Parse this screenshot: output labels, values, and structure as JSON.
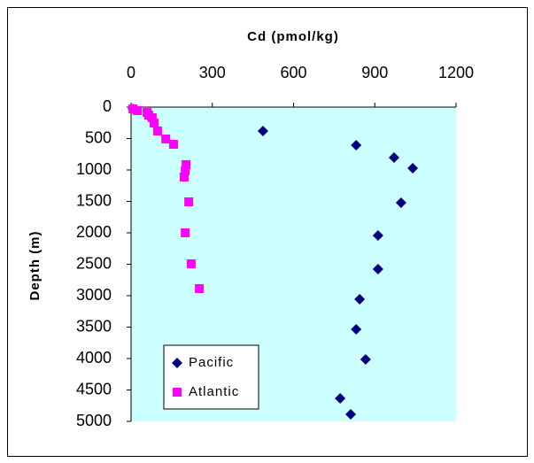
{
  "chart_data": {
    "type": "scatter",
    "x_label": "Cd (pmol/kg)",
    "y_label": "Depth (m)",
    "xlim": [
      0,
      1200
    ],
    "xticks": [
      0,
      300,
      600,
      900,
      1200
    ],
    "ylim": [
      0,
      5000
    ],
    "yticks": [
      0,
      500,
      1000,
      1500,
      2000,
      2500,
      3000,
      3500,
      4000,
      4500,
      5000
    ],
    "y_inverted": true,
    "x_axis_position": "top",
    "legend_position": "lower left",
    "background": "#ccffff",
    "series": [
      {
        "name": "Pacific",
        "color": "#000080",
        "marker": "diamond",
        "x": [
          7,
          75,
          487,
          831,
          971,
          1040,
          997,
          912,
          912,
          844,
          831,
          866,
          772,
          811
        ],
        "values": [
          28,
          183,
          380,
          606,
          803,
          972,
          1521,
          2042,
          2577,
          3056,
          3535,
          4014,
          4634,
          4887
        ]
      },
      {
        "name": "Atlantic",
        "color": "#ff00ff",
        "marker": "square",
        "x": [
          7,
          23,
          59,
          65,
          78,
          85,
          98,
          128,
          157,
          203,
          200,
          196,
          213,
          200,
          222,
          252
        ],
        "values": [
          28,
          56,
          85,
          127,
          169,
          254,
          380,
          507,
          592,
          915,
          1014,
          1113,
          1507,
          2000,
          2493,
          2887
        ]
      }
    ]
  }
}
